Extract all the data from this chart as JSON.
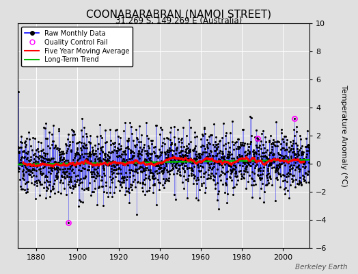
{
  "title": "COONABARABRAN (NAMOI STREET)",
  "subtitle": "31.269 S, 149.269 E (Australia)",
  "ylabel": "Temperature Anomaly (°C)",
  "watermark": "Berkeley Earth",
  "year_start": 1871,
  "year_end": 2013,
  "ylim": [
    -6,
    10
  ],
  "yticks": [
    -6,
    -4,
    -2,
    0,
    2,
    4,
    6,
    8,
    10
  ],
  "xticks": [
    1880,
    1900,
    1920,
    1940,
    1960,
    1980,
    2000
  ],
  "xlim": [
    1871,
    2013
  ],
  "raw_color": "#0000ff",
  "moving_avg_color": "#ff0000",
  "trend_color": "#00bb00",
  "qc_fail_color": "#ff00ff",
  "background_color": "#e0e0e0",
  "grid_color": "#ffffff",
  "seed": 137
}
